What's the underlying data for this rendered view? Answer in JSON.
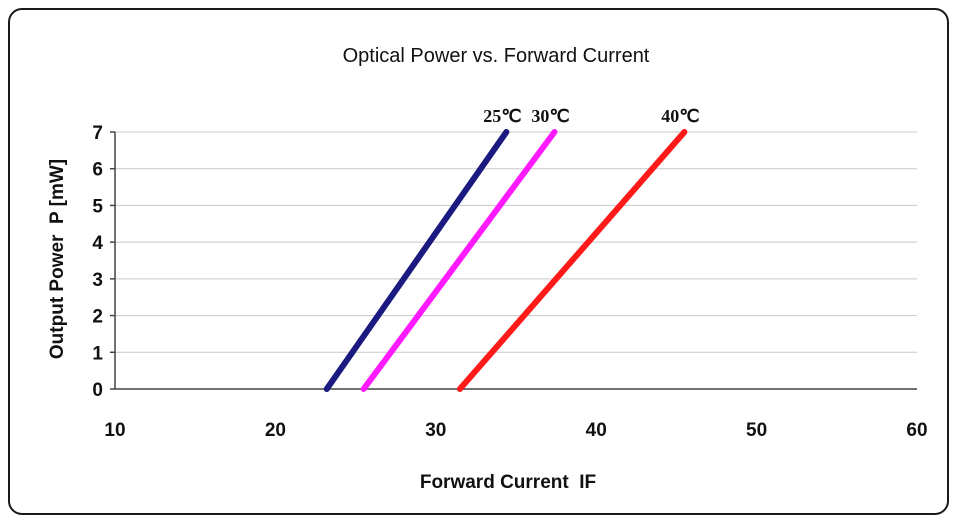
{
  "chart_data": {
    "type": "line",
    "title": "Optical Power vs. Forward Current",
    "xlabel": "Forward Current  IF",
    "ylabel": "Output Power  P [mW]",
    "xlim": [
      10,
      60
    ],
    "ylim": [
      0,
      7
    ],
    "x_ticks": [
      "10",
      "20",
      "30",
      "40",
      "50",
      "60"
    ],
    "y_ticks": [
      "0",
      "1",
      "2",
      "3",
      "4",
      "5",
      "6",
      "7"
    ],
    "grid": true,
    "series": [
      {
        "name": "25℃",
        "color": "#1a1a80",
        "points": [
          {
            "x": 23.2,
            "y": 0
          },
          {
            "x": 34.4,
            "y": 7
          }
        ]
      },
      {
        "name": "30℃",
        "color": "#ff1aff",
        "points": [
          {
            "x": 25.5,
            "y": 0
          },
          {
            "x": 37.4,
            "y": 7
          }
        ]
      },
      {
        "name": "40℃",
        "color": "#ff1a1a",
        "points": [
          {
            "x": 31.5,
            "y": 0
          },
          {
            "x": 45.5,
            "y": 7
          }
        ]
      }
    ]
  }
}
